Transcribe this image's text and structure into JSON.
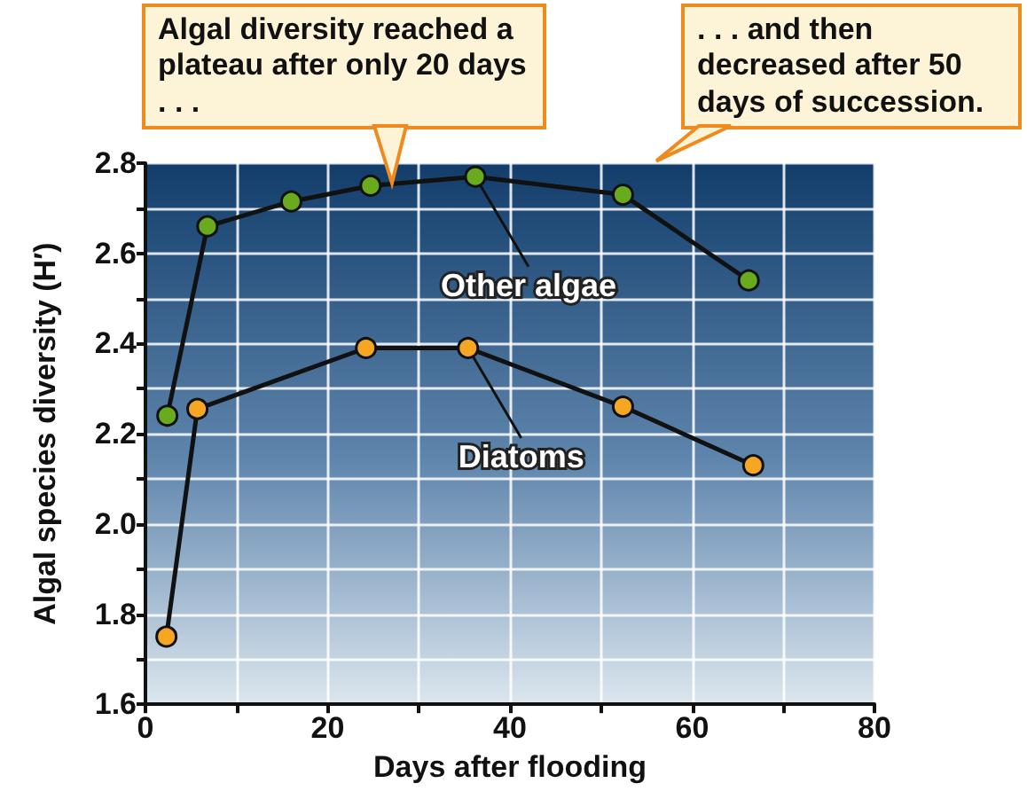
{
  "chart_data": {
    "type": "line",
    "xlabel": "Days after flooding",
    "ylabel": "Algal species diversity (H′)",
    "xlim": [
      0,
      80
    ],
    "xticks": [
      0,
      {
        "value": 10,
        "label": null
      },
      20,
      {
        "value": 30,
        "label": null
      },
      40,
      {
        "value": 50,
        "label": null
      },
      60,
      {
        "value": 70,
        "label": null
      },
      80
    ],
    "ylim": [
      1.6,
      2.8
    ],
    "yticks": [
      {
        "value": 1.6,
        "label": "1.6"
      },
      {
        "value": 1.7,
        "label": null
      },
      {
        "value": 1.8,
        "label": "1.8"
      },
      {
        "value": 1.9,
        "label": null
      },
      {
        "value": 2.0,
        "label": "2.0"
      },
      {
        "value": 2.1,
        "label": null
      },
      {
        "value": 2.2,
        "label": "2.2"
      },
      {
        "value": 2.3,
        "label": null
      },
      {
        "value": 2.4,
        "label": "2.4"
      },
      {
        "value": 2.5,
        "label": null
      },
      {
        "value": 2.6,
        "label": "2.6"
      },
      {
        "value": 2.7,
        "label": null
      },
      {
        "value": 2.8,
        "label": "2.8"
      }
    ],
    "grid": true,
    "marker": "circle",
    "line_style": "solid",
    "series": [
      {
        "name": "Other algae",
        "color": "#6aaa1e",
        "x": [
          2.4,
          6.8,
          16.0,
          24.7,
          36.2,
          52.4,
          66.2
        ],
        "values": [
          2.24,
          2.66,
          2.715,
          2.75,
          2.77,
          2.73,
          2.54
        ]
      },
      {
        "name": "Diatoms",
        "color": "#f5a623",
        "x": [
          2.3,
          5.7,
          24.2,
          35.4,
          52.4,
          66.7
        ],
        "values": [
          1.75,
          2.255,
          2.39,
          2.39,
          2.26,
          2.13
        ]
      }
    ],
    "annotations": [
      {
        "text": "Algal diversity reached a plateau after only 20 days . . .",
        "x": 27,
        "y": 2.755
      },
      ". . . and then decreased after 50 days of succession."
    ]
  }
}
